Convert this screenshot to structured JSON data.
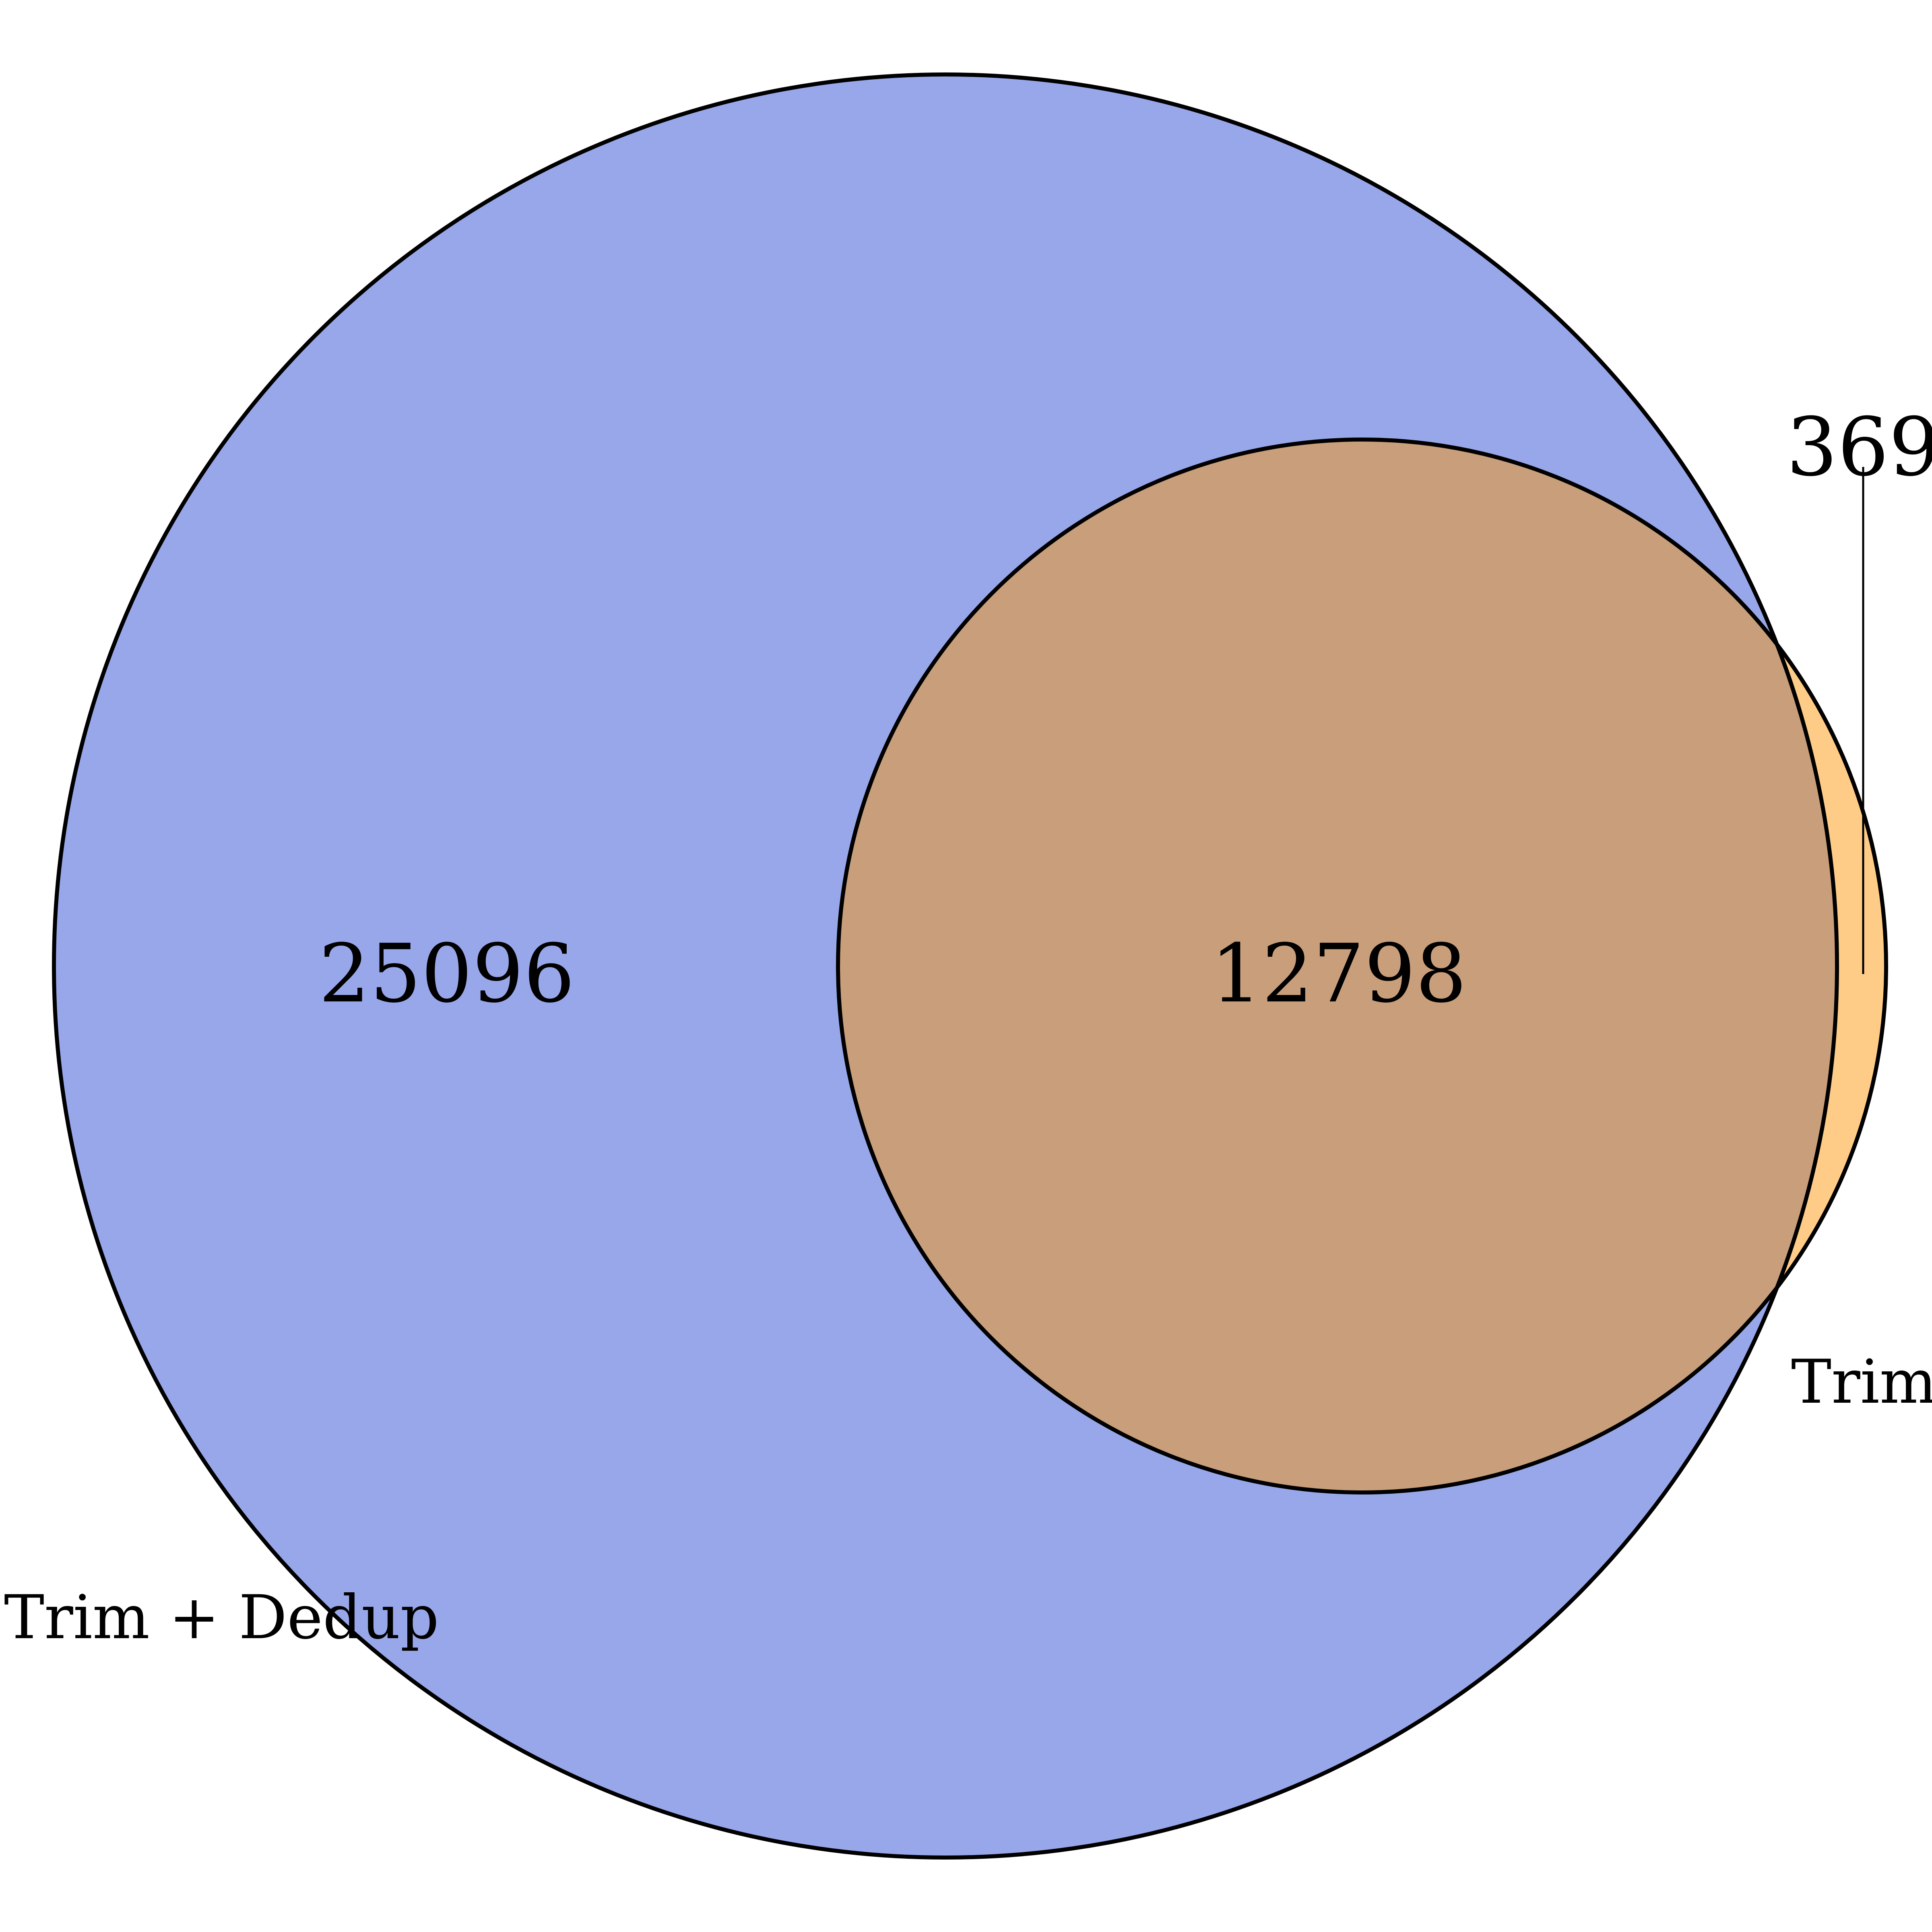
{
  "venn": {
    "sets": [
      {
        "name": "Trim + Dedup",
        "color": "#98a7ea"
      },
      {
        "name": "Trim",
        "color": "#ffcc88"
      }
    ],
    "overlap_color": "#c99e7b",
    "regions": {
      "only_trim_dedup": "25096",
      "both": "12798",
      "only_trim": "369"
    }
  }
}
